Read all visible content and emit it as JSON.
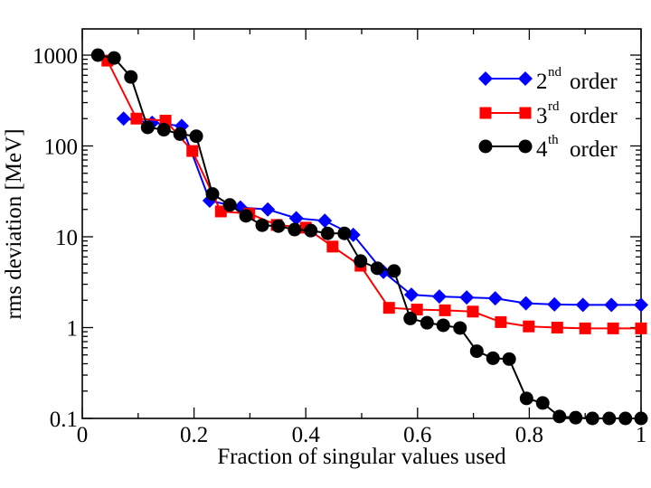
{
  "chart_data": {
    "type": "line",
    "title": "",
    "xlabel": "Fraction of singular values used",
    "ylabel": "rms deviation [MeV]",
    "xlim": [
      0,
      1
    ],
    "ylim": [
      0.1,
      2000
    ],
    "yscale": "log",
    "grid": false,
    "legend_position": "top-right",
    "x_ticks": [
      {
        "value": 0,
        "label": "0"
      },
      {
        "value": 0.2,
        "label": "0.2"
      },
      {
        "value": 0.4,
        "label": "0.4"
      },
      {
        "value": 0.6,
        "label": "0.6"
      },
      {
        "value": 0.8,
        "label": "0.8"
      },
      {
        "value": 1,
        "label": "1"
      }
    ],
    "y_ticks": [
      {
        "value": 0.1,
        "label": "0.1"
      },
      {
        "value": 1,
        "label": "1"
      },
      {
        "value": 10,
        "label": "10"
      },
      {
        "value": 100,
        "label": "100"
      },
      {
        "value": 1000,
        "label": "1000"
      }
    ],
    "series": [
      {
        "name": "2nd order",
        "legend_base": "2",
        "legend_sup": "nd",
        "legend_rest": " order",
        "color": "#0000ff",
        "marker": "diamond",
        "x": [
          0.074,
          0.125,
          0.178,
          0.228,
          0.283,
          0.332,
          0.383,
          0.434,
          0.485,
          0.539,
          0.589,
          0.639,
          0.688,
          0.739,
          0.794,
          0.845,
          0.896,
          0.947,
          1.0
        ],
        "y": [
          200,
          180,
          166,
          25,
          21,
          20,
          16,
          15,
          10.5,
          4.1,
          2.3,
          2.2,
          2.15,
          2.1,
          1.85,
          1.8,
          1.78,
          1.78,
          1.78
        ]
      },
      {
        "name": "3rd order",
        "legend_base": "3",
        "legend_sup": "rd",
        "legend_rest": " order",
        "color": "#ff0000",
        "marker": "square",
        "x": [
          0.045,
          0.097,
          0.149,
          0.197,
          0.248,
          0.299,
          0.348,
          0.4,
          0.448,
          0.498,
          0.549,
          0.599,
          0.649,
          0.699,
          0.749,
          0.799,
          0.85,
          0.9,
          0.95,
          1.0
        ],
        "y": [
          870,
          200,
          190,
          88,
          19,
          18,
          13.5,
          12.6,
          7.8,
          4.8,
          1.65,
          1.58,
          1.55,
          1.5,
          1.15,
          1.03,
          1.0,
          0.98,
          0.98,
          0.98
        ]
      },
      {
        "name": "4th order",
        "legend_base": "4",
        "legend_sup": "th",
        "legend_rest": " order",
        "color": "#000000",
        "marker": "circle",
        "x": [
          0.028,
          0.057,
          0.087,
          0.117,
          0.146,
          0.175,
          0.204,
          0.233,
          0.264,
          0.293,
          0.322,
          0.351,
          0.38,
          0.409,
          0.439,
          0.469,
          0.498,
          0.528,
          0.558,
          0.587,
          0.617,
          0.646,
          0.676,
          0.706,
          0.735,
          0.764,
          0.795,
          0.824,
          0.854,
          0.883,
          0.913,
          0.943,
          0.972,
          1.0
        ],
        "y": [
          1000,
          930,
          575,
          160,
          151,
          135,
          128,
          29.6,
          22.4,
          17,
          13.4,
          13.1,
          12.0,
          11.7,
          10.9,
          10.9,
          5.4,
          4.5,
          4.2,
          1.26,
          1.13,
          1.06,
          0.99,
          0.55,
          0.46,
          0.45,
          0.166,
          0.148,
          0.105,
          0.102,
          0.1,
          0.1,
          0.1,
          0.1
        ]
      }
    ]
  }
}
